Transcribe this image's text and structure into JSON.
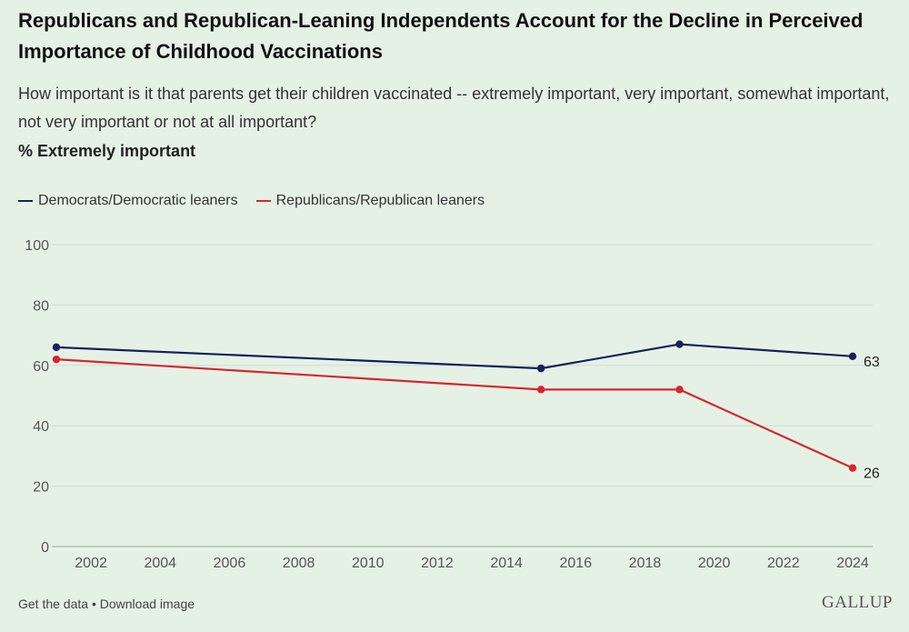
{
  "header": {
    "title": "Republicans and Republican-Leaning Independents Account for the Decline in Perceived Importance of Childhood Vaccinations",
    "subtitle": "How important is it that parents get their children vaccinated -- extremely important, very important, somewhat important, not very important or not at all important?",
    "measure": "% Extremely important"
  },
  "footer": {
    "get_data": "Get the data",
    "separator": " • ",
    "download": "Download image",
    "logo": "GALLUP"
  },
  "chart_data": {
    "type": "line",
    "title": "Republicans and Republican-Leaning Independents Account for the Decline in Perceived Importance of Childhood Vaccinations",
    "xlabel": "",
    "ylabel": "% Extremely important",
    "xlim": [
      2001,
      2024
    ],
    "ylim": [
      0,
      100
    ],
    "xticks": [
      2002,
      2004,
      2006,
      2008,
      2010,
      2012,
      2014,
      2016,
      2018,
      2020,
      2022,
      2024
    ],
    "yticks": [
      0,
      20,
      40,
      60,
      80,
      100
    ],
    "grid": true,
    "legend": "top-left",
    "series": [
      {
        "name": "Democrats/Democratic leaners",
        "color": "#14215a",
        "x": [
          2001,
          2015,
          2019,
          2024
        ],
        "values": [
          66,
          59,
          67,
          63
        ],
        "end_label": "63"
      },
      {
        "name": "Republicans/Republican leaners",
        "color": "#d7262e",
        "x": [
          2001,
          2015,
          2019,
          2024
        ],
        "values": [
          62,
          52,
          52,
          26
        ],
        "end_label": "26"
      }
    ]
  }
}
